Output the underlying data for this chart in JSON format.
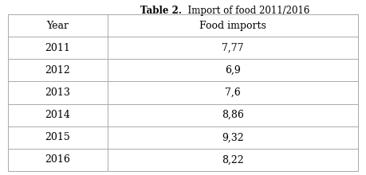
{
  "title_part1": "Table 2.",
  "title_part2": "  Import of food 2011/2016",
  "col_headers": [
    "Year",
    "Food imports"
  ],
  "rows": [
    [
      "2011",
      "7,77"
    ],
    [
      "2012",
      "6,9"
    ],
    [
      "2013",
      "7,6"
    ],
    [
      "2014",
      "8,86"
    ],
    [
      "2015",
      "9,32"
    ],
    [
      "2016",
      "8,22"
    ]
  ],
  "title_fontsize": 8.5,
  "header_fontsize": 9,
  "cell_fontsize": 9,
  "bg_color": "#ffffff",
  "line_color": "#aaaaaa",
  "text_color": "#000000"
}
